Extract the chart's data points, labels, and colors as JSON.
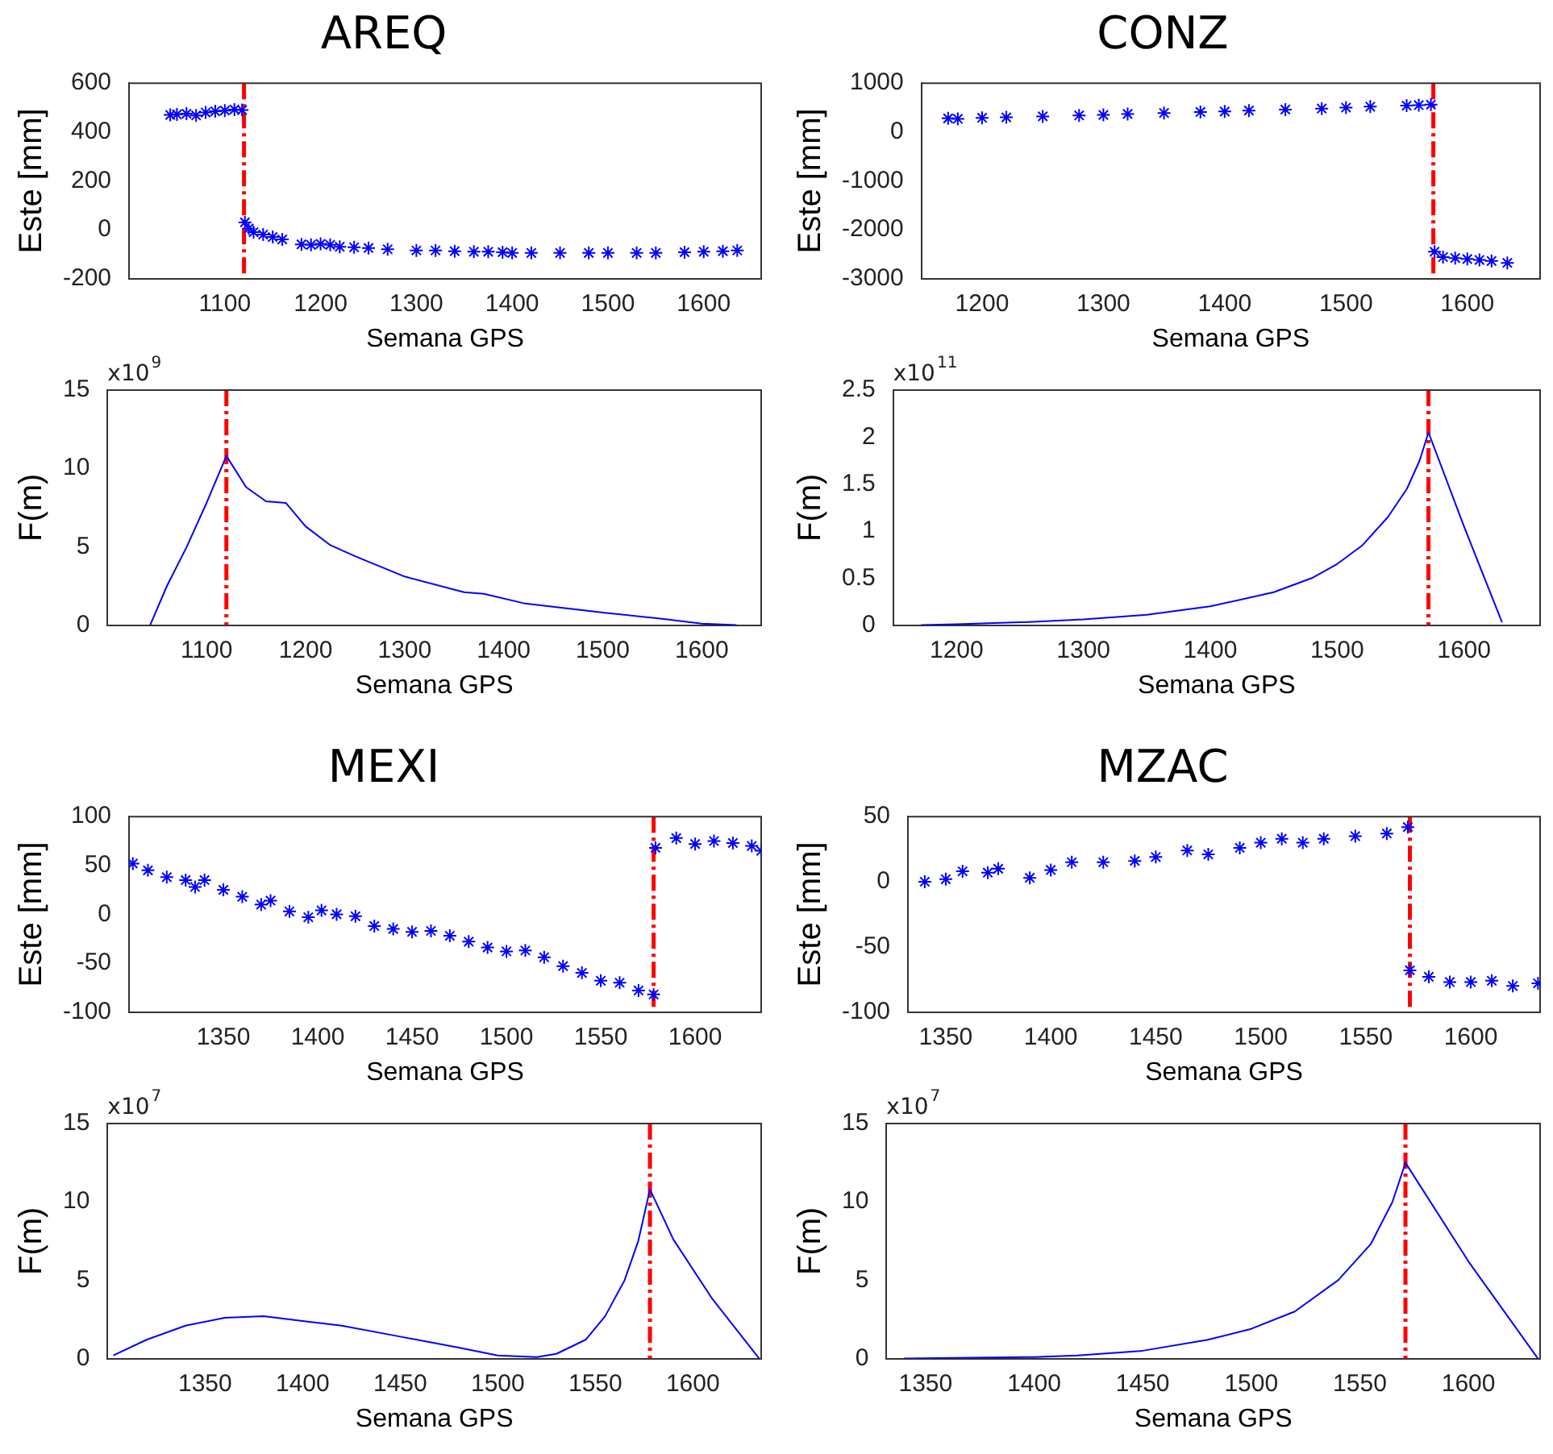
{
  "chart_data": [
    {
      "type": "scatter",
      "title": "AREQ",
      "xlabel": "Semana GPS",
      "ylabel": "Este [mm]",
      "marker": "cross",
      "xlim": [
        1000,
        1660
      ],
      "xticks": [
        1100,
        1200,
        1300,
        1400,
        1500,
        1600
      ],
      "ylim": [
        -200,
        600
      ],
      "yticks": [
        -200,
        0,
        200,
        400,
        600
      ],
      "ref_lines": [
        {
          "axis": "x",
          "value": 1120,
          "color": "#ff0000",
          "line_style": "dashed"
        }
      ],
      "series": [
        {
          "color": "#0000ff",
          "x": [
            1043,
            1050,
            1060,
            1070,
            1080,
            1090,
            1100,
            1110,
            1118,
            1121,
            1125,
            1130,
            1140,
            1150,
            1160,
            1180,
            1190,
            1200,
            1210,
            1220,
            1235,
            1250,
            1270,
            1300,
            1320,
            1340,
            1360,
            1375,
            1390,
            1400,
            1420,
            1450,
            1480,
            1500,
            1530,
            1550,
            1580,
            1600,
            1620,
            1635
          ],
          "values": [
            470,
            472,
            475,
            468,
            480,
            485,
            488,
            492,
            490,
            30,
            5,
            -10,
            -20,
            -30,
            -40,
            -60,
            -62,
            -58,
            -62,
            -70,
            -72,
            -75,
            -80,
            -85,
            -85,
            -88,
            -90,
            -90,
            -92,
            -95,
            -95,
            -95,
            -95,
            -95,
            -95,
            -95,
            -92,
            -90,
            -88,
            -85
          ]
        }
      ]
    },
    {
      "type": "scatter",
      "title": "CONZ",
      "xlabel": "Semana GPS",
      "ylabel": "Este [mm]",
      "marker": "cross",
      "xlim": [
        1150,
        1660
      ],
      "xticks": [
        1200,
        1300,
        1400,
        1500,
        1600
      ],
      "ylim": [
        -3000,
        1000
      ],
      "yticks": [
        -3000,
        -2000,
        -1000,
        0,
        1000
      ],
      "ref_lines": [
        {
          "axis": "x",
          "value": 1572,
          "color": "#ff0000",
          "line_style": "dashed"
        }
      ],
      "series": [
        {
          "color": "#0000ff",
          "x": [
            1172,
            1180,
            1200,
            1220,
            1250,
            1280,
            1300,
            1320,
            1350,
            1380,
            1400,
            1420,
            1450,
            1480,
            1500,
            1520,
            1550,
            1560,
            1570,
            1573,
            1580,
            1590,
            1600,
            1610,
            1620,
            1633
          ],
          "values": [
            280,
            270,
            290,
            300,
            320,
            340,
            350,
            370,
            390,
            410,
            420,
            440,
            460,
            480,
            500,
            520,
            540,
            550,
            560,
            -2450,
            -2560,
            -2580,
            -2600,
            -2620,
            -2640,
            -2680
          ]
        }
      ]
    },
    {
      "type": "line",
      "xlabel": "Semana GPS",
      "ylabel": "F(m)",
      "marker": "none",
      "annotations": [
        "x10$^{9}$"
      ],
      "xlim": [
        1000,
        1660
      ],
      "xticks": [
        1100,
        1200,
        1300,
        1400,
        1500,
        1600
      ],
      "ylim": [
        0,
        15
      ],
      "yticks": [
        0,
        5,
        10,
        15
      ],
      "ref_lines": [
        {
          "axis": "x",
          "value": 1120,
          "color": "#ff0000",
          "line_style": "dashed"
        }
      ],
      "series": [
        {
          "color": "#0000ff",
          "x": [
            1043,
            1060,
            1080,
            1100,
            1120,
            1140,
            1160,
            1180,
            1200,
            1225,
            1250,
            1300,
            1360,
            1380,
            1420,
            1500,
            1560,
            1600,
            1635
          ],
          "values": [
            0,
            2.5,
            5,
            7.8,
            10.8,
            8.8,
            7.9,
            7.8,
            6.3,
            5.1,
            4.4,
            3.1,
            2.1,
            2.0,
            1.4,
            0.8,
            0.4,
            0.1,
            0
          ]
        }
      ]
    },
    {
      "type": "line",
      "xlabel": "Semana GPS",
      "ylabel": "F(m)",
      "marker": "none",
      "annotations": [
        "x10$^{11}$"
      ],
      "xlim": [
        1150,
        1660
      ],
      "xticks": [
        1200,
        1300,
        1400,
        1500,
        1600
      ],
      "ylim": [
        0,
        2.5
      ],
      "yticks": [
        0,
        0.5,
        1,
        1.5,
        2,
        2.5
      ],
      "ref_lines": [
        {
          "axis": "x",
          "value": 1572,
          "color": "#ff0000",
          "line_style": "dashed"
        }
      ],
      "series": [
        {
          "color": "#0000ff",
          "x": [
            1172,
            1200,
            1250,
            1300,
            1350,
            1400,
            1450,
            1480,
            1500,
            1520,
            1540,
            1555,
            1565,
            1572,
            1600,
            1630
          ],
          "values": [
            0,
            0.01,
            0.03,
            0.06,
            0.11,
            0.2,
            0.35,
            0.5,
            0.65,
            0.85,
            1.15,
            1.45,
            1.75,
            2.05,
            1.05,
            0.03
          ]
        }
      ]
    },
    {
      "type": "scatter",
      "title": "MEXI",
      "xlabel": "Semana GPS",
      "ylabel": "Este [mm]",
      "marker": "cross",
      "xlim": [
        1300,
        1635
      ],
      "xticks": [
        1350,
        1400,
        1450,
        1500,
        1550,
        1600
      ],
      "ylim": [
        -100,
        100
      ],
      "yticks": [
        -100,
        -50,
        0,
        50,
        100
      ],
      "ref_lines": [
        {
          "axis": "x",
          "value": 1578,
          "color": "#ff0000",
          "line_style": "dashed"
        }
      ],
      "series": [
        {
          "color": "#0000ff",
          "x": [
            1302,
            1310,
            1320,
            1330,
            1335,
            1340,
            1350,
            1360,
            1370,
            1375,
            1385,
            1395,
            1402,
            1410,
            1420,
            1430,
            1440,
            1450,
            1460,
            1470,
            1480,
            1490,
            1500,
            1510,
            1520,
            1530,
            1540,
            1550,
            1560,
            1570,
            1578,
            1579,
            1590,
            1600,
            1610,
            1620,
            1630,
            1635
          ],
          "values": [
            52,
            45,
            38,
            35,
            28,
            35,
            25,
            18,
            10,
            14,
            3,
            -3,
            4,
            0,
            -2,
            -12,
            -15,
            -18,
            -17,
            -22,
            -28,
            -34,
            -38,
            -37,
            -44,
            -53,
            -60,
            -68,
            -70,
            -78,
            -82,
            68,
            78,
            72,
            75,
            73,
            70,
            65
          ]
        }
      ]
    },
    {
      "type": "scatter",
      "title": "MZAC",
      "xlabel": "Semana GPS",
      "ylabel": "Este [mm]",
      "marker": "cross",
      "xlim": [
        1332,
        1633
      ],
      "xticks": [
        1350,
        1400,
        1450,
        1500,
        1550,
        1600
      ],
      "ylim": [
        -100,
        50
      ],
      "yticks": [
        -100,
        -50,
        0,
        50
      ],
      "ref_lines": [
        {
          "axis": "x",
          "value": 1571,
          "color": "#ff0000",
          "line_style": "dashed"
        }
      ],
      "series": [
        {
          "color": "#0000ff",
          "x": [
            1340,
            1350,
            1358,
            1370,
            1375,
            1390,
            1400,
            1410,
            1425,
            1440,
            1450,
            1465,
            1475,
            1490,
            1500,
            1510,
            1520,
            1530,
            1545,
            1560,
            1570,
            1571,
            1580,
            1590,
            1600,
            1610,
            1620,
            1632
          ],
          "values": [
            0,
            2,
            8,
            7,
            10,
            3,
            9,
            15,
            15,
            16,
            19,
            24,
            21,
            26,
            30,
            33,
            30,
            33,
            35,
            37,
            42,
            -68,
            -73,
            -77,
            -77,
            -76,
            -80,
            -78
          ]
        }
      ]
    },
    {
      "type": "line",
      "xlabel": "Semana GPS",
      "ylabel": "F(m)",
      "marker": "none",
      "annotations": [
        "x10$^{7}$"
      ],
      "xlim": [
        1300,
        1635
      ],
      "xticks": [
        1350,
        1400,
        1450,
        1500,
        1550,
        1600
      ],
      "ylim": [
        0,
        15
      ],
      "yticks": [
        0,
        5,
        10,
        15
      ],
      "ref_lines": [
        {
          "axis": "x",
          "value": 1578,
          "color": "#ff0000",
          "line_style": "dashed"
        }
      ],
      "series": [
        {
          "color": "#0000ff",
          "x": [
            1303,
            1320,
            1340,
            1360,
            1380,
            1400,
            1420,
            1450,
            1480,
            1500,
            1520,
            1530,
            1545,
            1555,
            1565,
            1572,
            1578,
            1590,
            1610,
            1634
          ],
          "values": [
            0.2,
            1.2,
            2.1,
            2.6,
            2.7,
            2.4,
            2.1,
            1.4,
            0.7,
            0.2,
            0.1,
            0.3,
            1.2,
            2.7,
            5,
            7.5,
            10.8,
            7.6,
            3.8,
            0
          ]
        }
      ]
    },
    {
      "type": "line",
      "xlabel": "Semana GPS",
      "ylabel": "F(m)",
      "marker": "none",
      "annotations": [
        "x10$^{7}$"
      ],
      "xlim": [
        1332,
        1633
      ],
      "xticks": [
        1350,
        1400,
        1450,
        1500,
        1550,
        1600
      ],
      "ylim": [
        0,
        15
      ],
      "yticks": [
        0,
        5,
        10,
        15
      ],
      "ref_lines": [
        {
          "axis": "x",
          "value": 1571,
          "color": "#ff0000",
          "line_style": "dashed"
        }
      ],
      "series": [
        {
          "color": "#0000ff",
          "x": [
            1340,
            1400,
            1420,
            1450,
            1480,
            1500,
            1520,
            1540,
            1555,
            1565,
            1571,
            1600,
            1632
          ],
          "values": [
            0,
            0.1,
            0.2,
            0.5,
            1.2,
            1.9,
            3,
            5,
            7.3,
            10,
            12.5,
            6.2,
            0
          ]
        }
      ]
    }
  ]
}
